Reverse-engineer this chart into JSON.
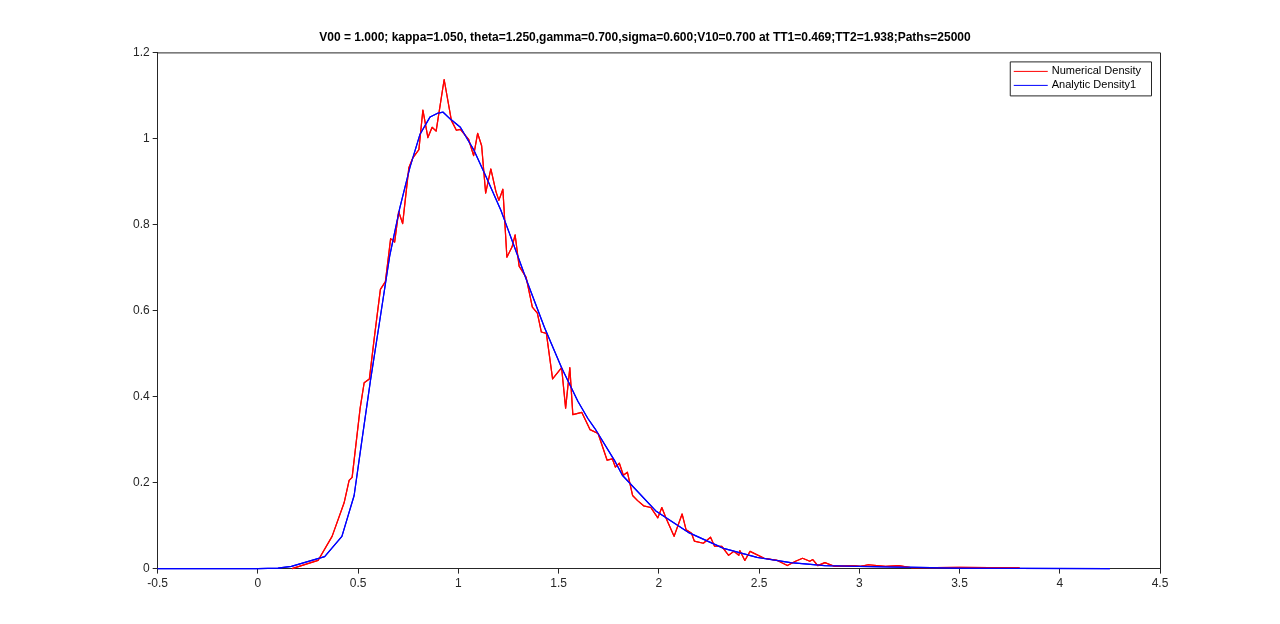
{
  "chart_data": {
    "type": "line",
    "title": "V00 = 1.000; kappa=1.050, theta=1.250,gamma=0.700,sigma=0.600;V10=0.700 at TT1=0.469;TT2=1.938;Paths=25000",
    "xlim": [
      -0.5,
      4.5
    ],
    "xticks": [
      -0.5,
      0,
      0.5,
      1,
      1.5,
      2,
      2.5,
      3,
      3.5,
      4,
      4.5
    ],
    "ylim": [
      0,
      1.2
    ],
    "yticks": [
      0,
      0.2,
      0.4,
      0.6,
      0.8,
      1,
      1.2
    ],
    "grid": false,
    "legend": "top right",
    "marker": "none",
    "line_style": "solid",
    "series": [
      {
        "name": "Numerical Density",
        "color": "#ff0000",
        "x": [
          0.17,
          0.3,
          0.37,
          0.43,
          0.455,
          0.47,
          0.51,
          0.53,
          0.556,
          0.581,
          0.611,
          0.636,
          0.662,
          0.682,
          0.702,
          0.722,
          0.753,
          0.773,
          0.803,
          0.823,
          0.848,
          0.869,
          0.889,
          0.929,
          0.965,
          0.99,
          1.01,
          1.051,
          1.076,
          1.096,
          1.116,
          1.136,
          1.162,
          1.187,
          1.202,
          1.222,
          1.242,
          1.268,
          1.283,
          1.303,
          1.338,
          1.369,
          1.394,
          1.414,
          1.439,
          1.47,
          1.515,
          1.535,
          1.556,
          1.571,
          1.616,
          1.657,
          1.697,
          1.742,
          1.768,
          1.783,
          1.803,
          1.823,
          1.843,
          1.869,
          1.894,
          1.924,
          1.96,
          1.995,
          2.015,
          2.035,
          2.076,
          2.116,
          2.136,
          2.162,
          2.177,
          2.222,
          2.258,
          2.278,
          2.313,
          2.348,
          2.374,
          2.399,
          2.404,
          2.429,
          2.455,
          2.525,
          2.591,
          2.641,
          2.682,
          2.717,
          2.753,
          2.768,
          2.793,
          2.828,
          2.879,
          2.97,
          3.005,
          3.045,
          3.131,
          3.197,
          3.263,
          3.5,
          3.8
        ],
        "values": [
          0,
          0.019,
          0.075,
          0.153,
          0.205,
          0.212,
          0.373,
          0.432,
          0.441,
          0.538,
          0.649,
          0.667,
          0.767,
          0.759,
          0.83,
          0.802,
          0.932,
          0.955,
          0.974,
          1.066,
          1.002,
          1.026,
          1.017,
          1.137,
          1.042,
          1.019,
          1.021,
          0.998,
          0.96,
          1.012,
          0.983,
          0.873,
          0.929,
          0.877,
          0.856,
          0.882,
          0.724,
          0.748,
          0.776,
          0.703,
          0.677,
          0.608,
          0.594,
          0.55,
          0.547,
          0.441,
          0.467,
          0.373,
          0.467,
          0.358,
          0.363,
          0.323,
          0.314,
          0.252,
          0.255,
          0.236,
          0.245,
          0.217,
          0.224,
          0.17,
          0.158,
          0.146,
          0.142,
          0.118,
          0.142,
          0.118,
          0.075,
          0.127,
          0.09,
          0.083,
          0.064,
          0.059,
          0.073,
          0.052,
          0.052,
          0.031,
          0.04,
          0.031,
          0.042,
          0.019,
          0.04,
          0.024,
          0.019,
          0.007,
          0.017,
          0.024,
          0.017,
          0.021,
          0.007,
          0.014,
          0.005,
          0.007,
          0.005,
          0.009,
          0.005,
          0.007,
          0.002,
          0.003,
          0.002
        ]
      },
      {
        "name": "Analytic Density1",
        "color": "#0000ff",
        "x": [
          -0.5,
          0,
          0.1,
          0.167,
          0.333,
          0.419,
          0.48,
          0.52,
          0.561,
          0.606,
          0.657,
          0.707,
          0.758,
          0.808,
          0.859,
          0.899,
          0.924,
          0.96,
          1.01,
          1.076,
          1.141,
          1.212,
          1.278,
          1.343,
          1.429,
          1.515,
          1.596,
          1.646,
          1.682,
          1.783,
          1.818,
          1.985,
          2.152,
          2.323,
          2.49,
          2.657,
          2.828,
          2.995,
          3.5,
          4.25
        ],
        "values": [
          0,
          0,
          0.001,
          0.005,
          0.028,
          0.075,
          0.17,
          0.302,
          0.436,
          0.571,
          0.726,
          0.837,
          0.932,
          1.009,
          1.05,
          1.059,
          1.061,
          1.045,
          1.026,
          0.974,
          0.908,
          0.833,
          0.75,
          0.667,
          0.561,
          0.467,
          0.389,
          0.349,
          0.325,
          0.248,
          0.217,
          0.134,
          0.083,
          0.047,
          0.026,
          0.014,
          0.007,
          0.005,
          0.001,
          0
        ]
      }
    ]
  }
}
